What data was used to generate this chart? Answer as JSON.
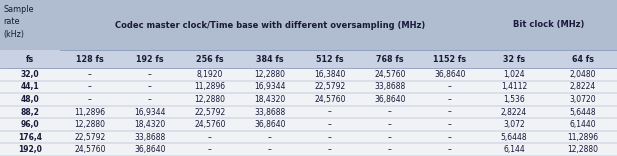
{
  "bg_color": "#b0bdd0",
  "white_color": "#ffffff",
  "cell_color": "#eef0f5",
  "header_text_color": "#1a1a3a",
  "cell_text_color": "#1a1a3a",
  "group_header1": "Codec master clock/Time base with different oversampling (MHz)",
  "group_header2": "Bit clock (MHz)",
  "col_headers": [
    "fs",
    "128 fs",
    "192 fs",
    "256 fs",
    "384 fs",
    "512 fs",
    "768 fs",
    "1152 fs",
    "32 fs",
    "64 fs"
  ],
  "rows": [
    [
      "32,0",
      "–",
      "–",
      "8,1920",
      "12,2880",
      "16,3840",
      "24,5760",
      "36,8640",
      "1,024",
      "2,0480"
    ],
    [
      "44,1",
      "–",
      "–",
      "11,2896",
      "16,9344",
      "22,5792",
      "33,8688",
      "–",
      "1,4112",
      "2,8224"
    ],
    [
      "48,0",
      "–",
      "–",
      "12,2880",
      "18,4320",
      "24,5760",
      "36,8640",
      "–",
      "1,536",
      "3,0720"
    ],
    [
      "88,2",
      "11,2896",
      "16,9344",
      "22,5792",
      "33,8688",
      "–",
      "–",
      "–",
      "2,8224",
      "5,6448"
    ],
    [
      "96,0",
      "12,2880",
      "18,4320",
      "24,5760",
      "36,8640",
      "–",
      "–",
      "–",
      "3,072",
      "6,1440"
    ],
    [
      "176,4",
      "22,5792",
      "33,8688",
      "–",
      "–",
      "–",
      "–",
      "–",
      "5,6448",
      "11,2896"
    ],
    [
      "192,0",
      "24,5760",
      "36,8640",
      "–",
      "–",
      "–",
      "–",
      "–",
      "6,144",
      "12,2880"
    ]
  ],
  "sample_rate_label": [
    "Sample",
    "rate",
    "(kHz)"
  ],
  "line_color": "#8899bb",
  "font_size_group": 6.0,
  "font_size_subhdr": 5.8,
  "font_size_cell": 5.5,
  "font_size_sr": 5.8
}
